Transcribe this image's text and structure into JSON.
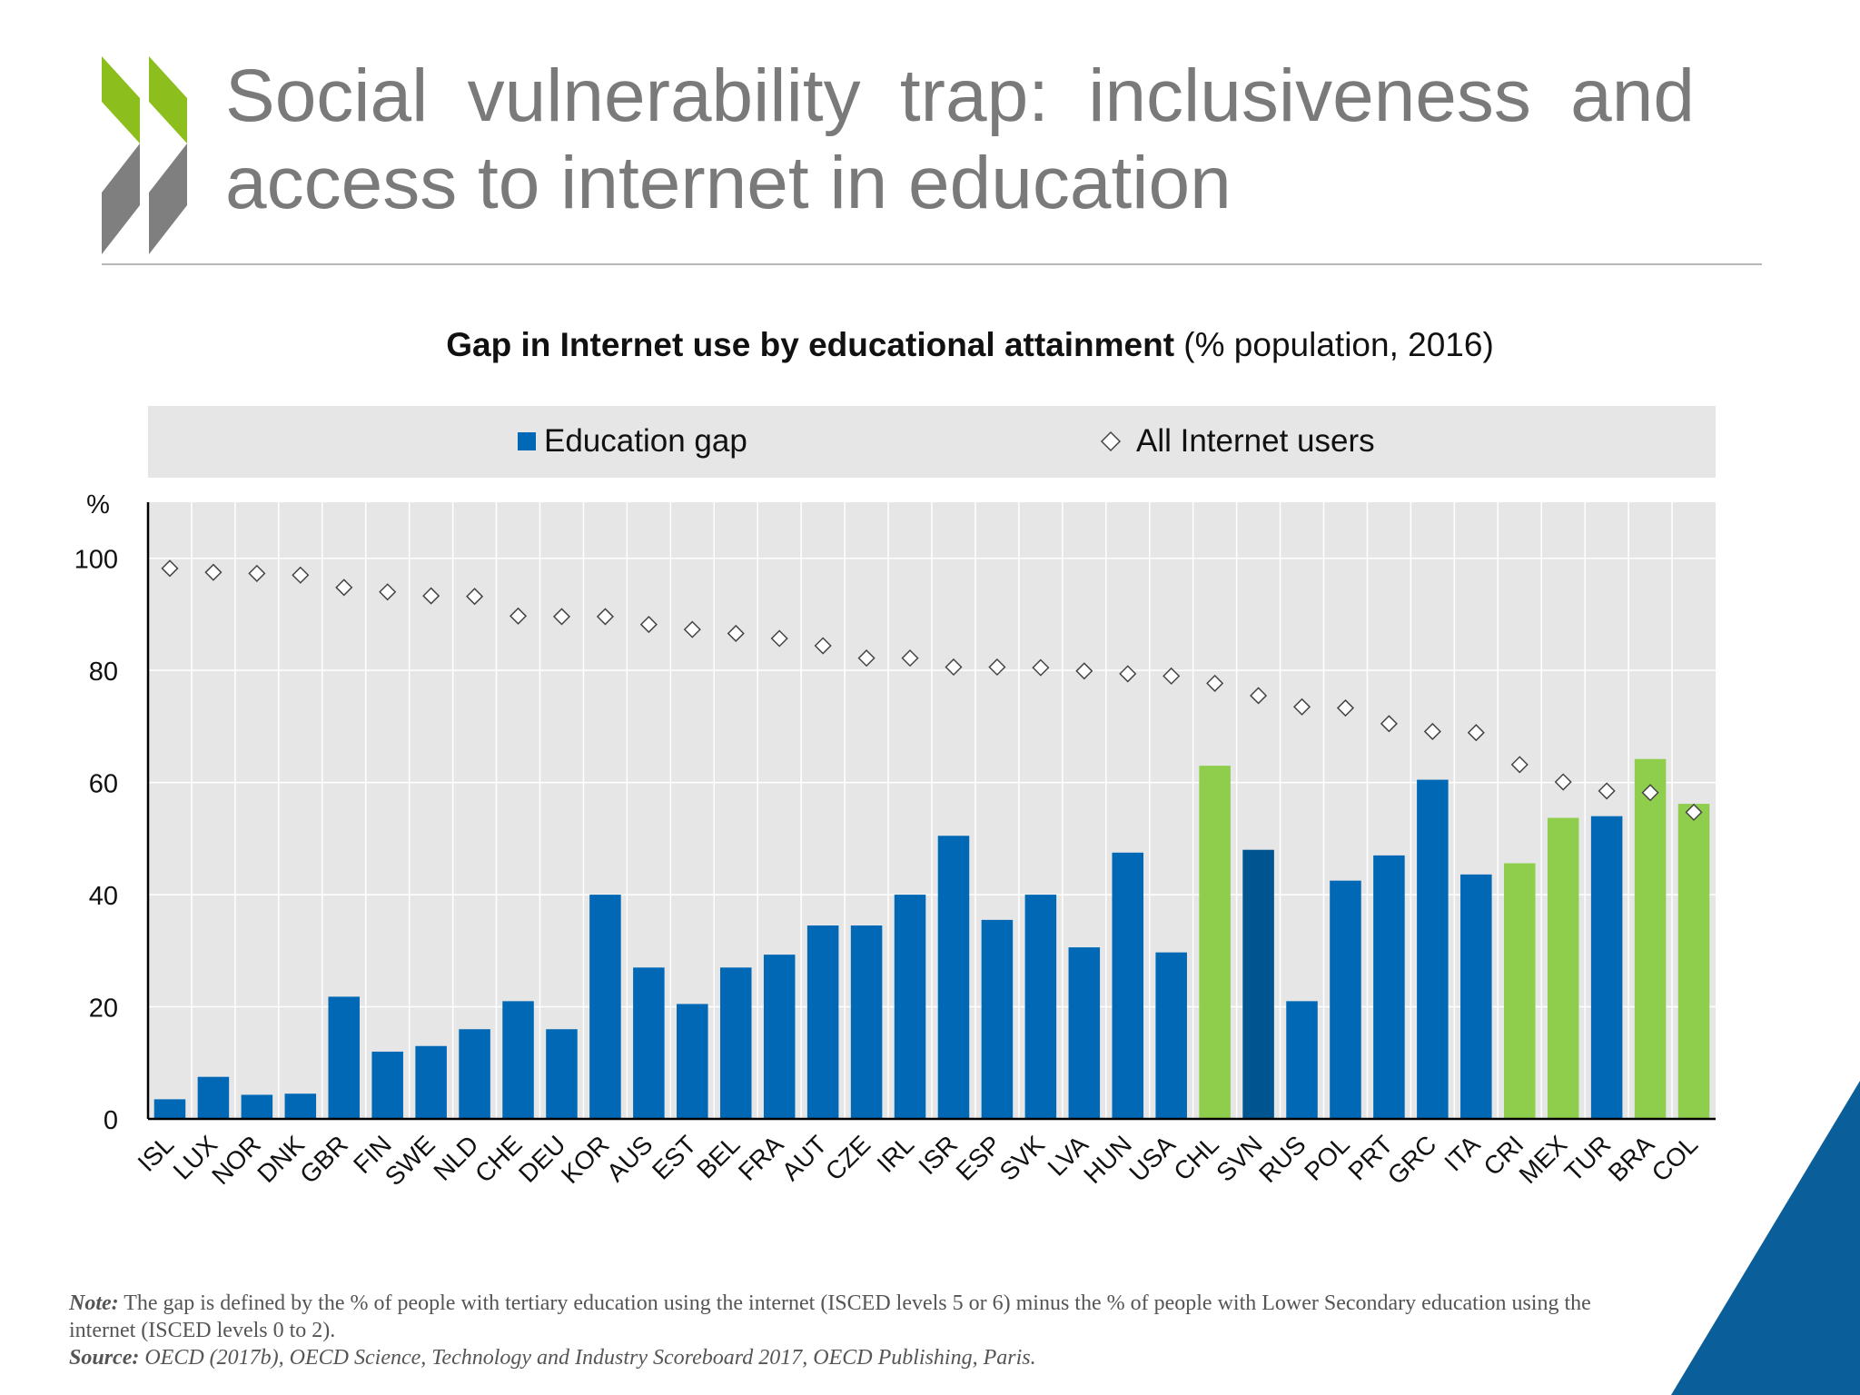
{
  "slide": {
    "title": "Social vulnerability trap: inclusiveness and access to internet in education"
  },
  "colors": {
    "blue": "#0068b5",
    "blue_highlight": "#00548f",
    "green": "#8fcd4c",
    "title_gray": "#7a7a7a",
    "logo_green": "#8cbf1e",
    "logo_gray": "#7f7f7f",
    "corner_blue": "#0a5f9a"
  },
  "chart_data": {
    "type": "bar",
    "title_bold": "Gap in Internet use by educational attainment",
    "title_rest": " (% population, 2016)",
    "ylabel": "%",
    "ylim": [
      0,
      110
    ],
    "yticks": [
      0,
      20,
      40,
      60,
      80,
      100
    ],
    "legend": {
      "bar_label": "Education gap",
      "marker_label": "All Internet users",
      "position": "top"
    },
    "categories": [
      "ISL",
      "LUX",
      "NOR",
      "DNK",
      "GBR",
      "FIN",
      "SWE",
      "NLD",
      "CHE",
      "DEU",
      "KOR",
      "AUS",
      "EST",
      "BEL",
      "FRA",
      "AUT",
      "CZE",
      "IRL",
      "ISR",
      "ESP",
      "SVK",
      "LVA",
      "HUN",
      "USA",
      "CHL",
      "SVN",
      "RUS",
      "POL",
      "PRT",
      "GRC",
      "ITA",
      "CRI",
      "MEX",
      "TUR",
      "BRA",
      "COL"
    ],
    "series": [
      {
        "name": "Education gap",
        "style": "bar",
        "values": [
          3.5,
          7.5,
          4.3,
          4.5,
          21.8,
          12,
          13,
          16,
          21,
          16,
          40,
          27,
          20.5,
          27,
          29.3,
          34.5,
          34.5,
          40,
          50.5,
          35.5,
          40,
          30.6,
          47.5,
          29.7,
          63,
          48,
          21,
          42.5,
          47,
          60.5,
          43.6,
          45.6,
          53.7,
          54,
          64.2,
          56.2
        ],
        "color_key": [
          "blue",
          "blue",
          "blue",
          "blue",
          "blue",
          "blue",
          "blue",
          "blue",
          "blue",
          "blue",
          "blue",
          "blue",
          "blue",
          "blue",
          "blue",
          "blue",
          "blue",
          "blue",
          "blue",
          "blue",
          "blue",
          "blue",
          "blue",
          "blue",
          "green",
          "blue_highlight",
          "blue",
          "blue",
          "blue",
          "blue",
          "blue",
          "green",
          "green",
          "blue",
          "green",
          "green"
        ]
      },
      {
        "name": "All Internet users",
        "style": "marker",
        "values": [
          98.2,
          97.5,
          97.3,
          97,
          94.8,
          94,
          93.3,
          93.2,
          89.7,
          89.6,
          89.6,
          88.2,
          87.3,
          86.6,
          85.7,
          84.4,
          82.2,
          82.2,
          80.6,
          80.6,
          80.5,
          79.9,
          79.4,
          79,
          77.7,
          75.5,
          73.5,
          73.3,
          70.5,
          69.1,
          68.9,
          63.2,
          60.1,
          58.5,
          58.2,
          54.7
        ]
      }
    ]
  },
  "notes": {
    "note_label": "Note:",
    "note_text": " The gap is defined by the % of people with tertiary education using the internet (ISCED levels 5 or 6) minus the % of people with Lower Secondary education using the internet (ISCED levels 0 to 2).",
    "source_label": "Source:",
    "source_text": " OECD (2017b), OECD Science, Technology and Industry Scoreboard 2017, OECD Publishing, Paris."
  }
}
